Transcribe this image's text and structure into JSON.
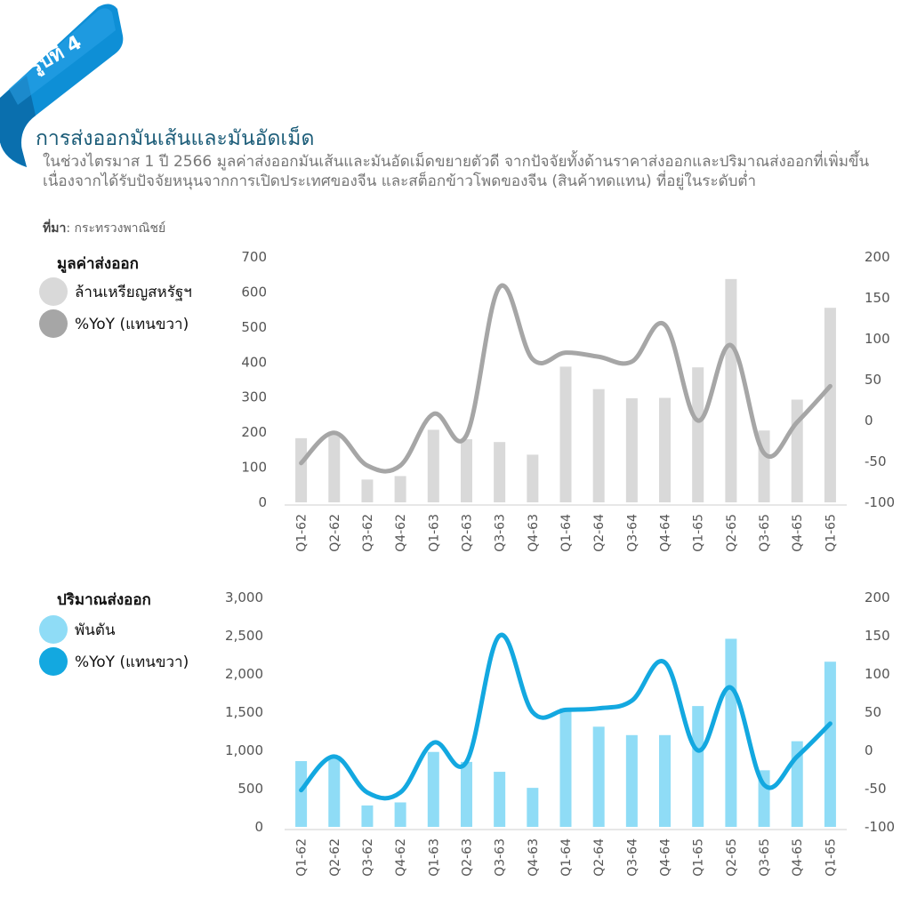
{
  "badge": {
    "label": "รูปที่ 4",
    "color": "#0e8fd6"
  },
  "header": {
    "title": "การส่งออกมันเส้นและมันอัดเม็ด",
    "description": "ในช่วงไตรมาส 1 ปี 2566 มูลค่าส่งออกมันเส้นและมันอัดเม็ดขยายตัวดี  จากปัจจัยทั้งด้านราคาส่งออกและปริมาณส่งออกที่เพิ่มขึ้น เนื่องจากได้รับปัจจัยหนุนจากการเปิดประเทศของจีน และสต็อกข้าวโพดของจีน (สินค้าทดแทน) ที่อยู่ในระดับต่ำ",
    "source_label": "ที่มา",
    "source_text": ": กระทรวงพาณิชย์"
  },
  "chart_data": [
    {
      "type": "bar",
      "legend_title": "มูลค่าส่งออก",
      "categories": [
        "Q1-62",
        "Q2-62",
        "Q3-62",
        "Q4-62",
        "Q1-63",
        "Q2-63",
        "Q3-63",
        "Q4-63",
        "Q1-64",
        "Q2-64",
        "Q3-64",
        "Q4-64",
        "Q1-65",
        "Q2-65",
        "Q3-65",
        "Q4-65",
        "Q1-65"
      ],
      "left_axis": {
        "ticks": [
          "0",
          "100",
          "200",
          "300",
          "400",
          "500",
          "600",
          "700"
        ],
        "ylim": [
          0,
          700
        ]
      },
      "right_axis": {
        "ticks": [
          "-100",
          "-50",
          "0",
          "50",
          "100",
          "150",
          "200"
        ],
        "ylim": [
          -100,
          200
        ]
      },
      "series": [
        {
          "name": "ล้านเหรียญสหรัฐฯ",
          "kind": "bar",
          "axis": "left",
          "color": "#d9d9d9",
          "values": [
            183,
            200,
            65,
            75,
            207,
            180,
            172,
            136,
            387,
            323,
            297,
            298,
            385,
            637,
            205,
            293,
            555
          ]
        },
        {
          "name": "%YoY (แทนขวา)",
          "kind": "line",
          "axis": "right",
          "color": "#a6a6a6",
          "values": [
            -52,
            -15,
            -55,
            -55,
            8,
            -18,
            163,
            75,
            83,
            78,
            72,
            117,
            0,
            92,
            -40,
            -2,
            42
          ]
        }
      ]
    },
    {
      "type": "bar",
      "legend_title": "ปริมาณส่งออก",
      "categories": [
        "Q1-62",
        "Q2-62",
        "Q3-62",
        "Q4-62",
        "Q1-63",
        "Q2-63",
        "Q3-63",
        "Q4-63",
        "Q1-64",
        "Q2-64",
        "Q3-64",
        "Q4-64",
        "Q1-65",
        "Q2-65",
        "Q3-65",
        "Q4-65",
        "Q1-65"
      ],
      "left_axis": {
        "ticks": [
          "0",
          "500",
          "1,000",
          "1,500",
          "2,000",
          "2,500",
          "3,000"
        ],
        "ylim": [
          0,
          3000
        ]
      },
      "right_axis": {
        "ticks": [
          "-100",
          "-50",
          "0",
          "50",
          "100",
          "150",
          "200"
        ],
        "ylim": [
          -100,
          200
        ]
      },
      "series": [
        {
          "name": "พันตัน",
          "kind": "bar",
          "axis": "left",
          "color": "#8fdcf6",
          "values": [
            860,
            930,
            280,
            320,
            980,
            850,
            720,
            510,
            1550,
            1310,
            1200,
            1200,
            1580,
            2460,
            740,
            1120,
            2160
          ]
        },
        {
          "name": "%YoY (แทนขวา)",
          "kind": "line",
          "axis": "right",
          "color": "#13a8e0",
          "values": [
            -52,
            -8,
            -55,
            -55,
            10,
            -15,
            150,
            50,
            53,
            55,
            65,
            115,
            0,
            82,
            -45,
            -8,
            35
          ]
        }
      ]
    }
  ]
}
